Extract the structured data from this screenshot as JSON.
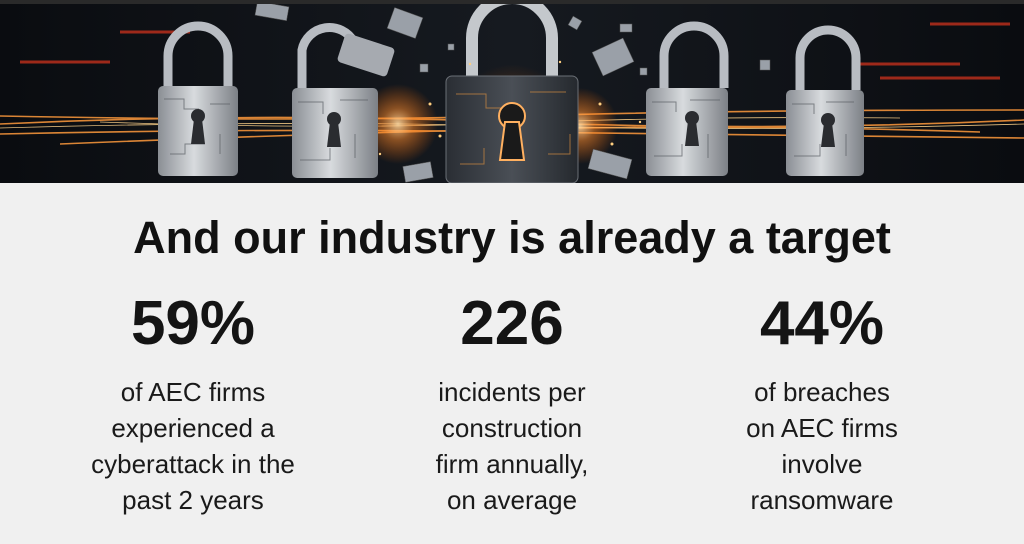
{
  "slide": {
    "headline": "And our industry is already a target",
    "stats": [
      {
        "value": "59%",
        "description": "of AEC firms\nexperienced a\ncyberattack in the\npast 2 years"
      },
      {
        "value": "226",
        "description": "incidents per\nconstruction\nfirm annually,\non average"
      },
      {
        "value": "44%",
        "description": "of breaches\non AEC firms\ninvolve\nransomware"
      }
    ]
  },
  "colors": {
    "background": "#f0f0f0",
    "text": "#1a1a1a",
    "banner": "#0c0e12",
    "accent_glow": "#ff9a3c"
  },
  "icons": [
    "padlock-icon",
    "keyhole-icon"
  ]
}
